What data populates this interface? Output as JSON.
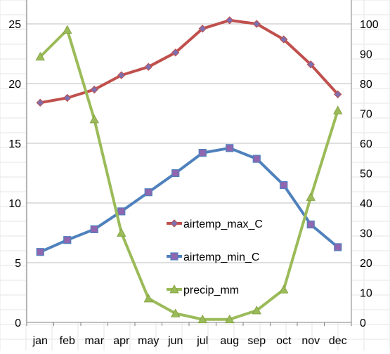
{
  "chart_data": {
    "type": "line",
    "categories": [
      "jan",
      "feb",
      "mar",
      "apr",
      "may",
      "jun",
      "jul",
      "aug",
      "sep",
      "oct",
      "nov",
      "dec"
    ],
    "y_left": {
      "range": [
        0,
        25
      ],
      "ticks": [
        "0",
        "5",
        "10",
        "15",
        "20",
        "25"
      ]
    },
    "y_right": {
      "range": [
        0,
        100
      ],
      "ticks": [
        "0",
        "10",
        "20",
        "30",
        "40",
        "50",
        "60",
        "70",
        "80",
        "90",
        "100"
      ]
    },
    "grid": true,
    "legend_position": "center-right (inside plot)",
    "series": [
      {
        "name": "airtemp_max_C",
        "axis": "left",
        "color": "#c0504d",
        "marker": "diamond",
        "marker_color": "#7d6fb0",
        "values": [
          18.4,
          18.8,
          19.5,
          20.7,
          21.4,
          22.6,
          24.6,
          25.3,
          25.0,
          23.7,
          21.6,
          19.1
        ]
      },
      {
        "name": "airtemp_min_C",
        "axis": "left",
        "color": "#4f81bd",
        "marker": "square",
        "marker_color": "#8f66b0",
        "values": [
          5.9,
          6.9,
          7.8,
          9.3,
          10.9,
          12.5,
          14.2,
          14.6,
          13.7,
          11.5,
          8.2,
          6.3
        ]
      },
      {
        "name": "precip_mm",
        "axis": "right",
        "color": "#9bbb59",
        "marker": "triangle",
        "marker_color": "#9bbb59",
        "values": [
          89,
          98,
          68,
          30,
          8,
          3,
          1,
          1,
          4,
          11,
          42,
          71
        ]
      }
    ]
  }
}
